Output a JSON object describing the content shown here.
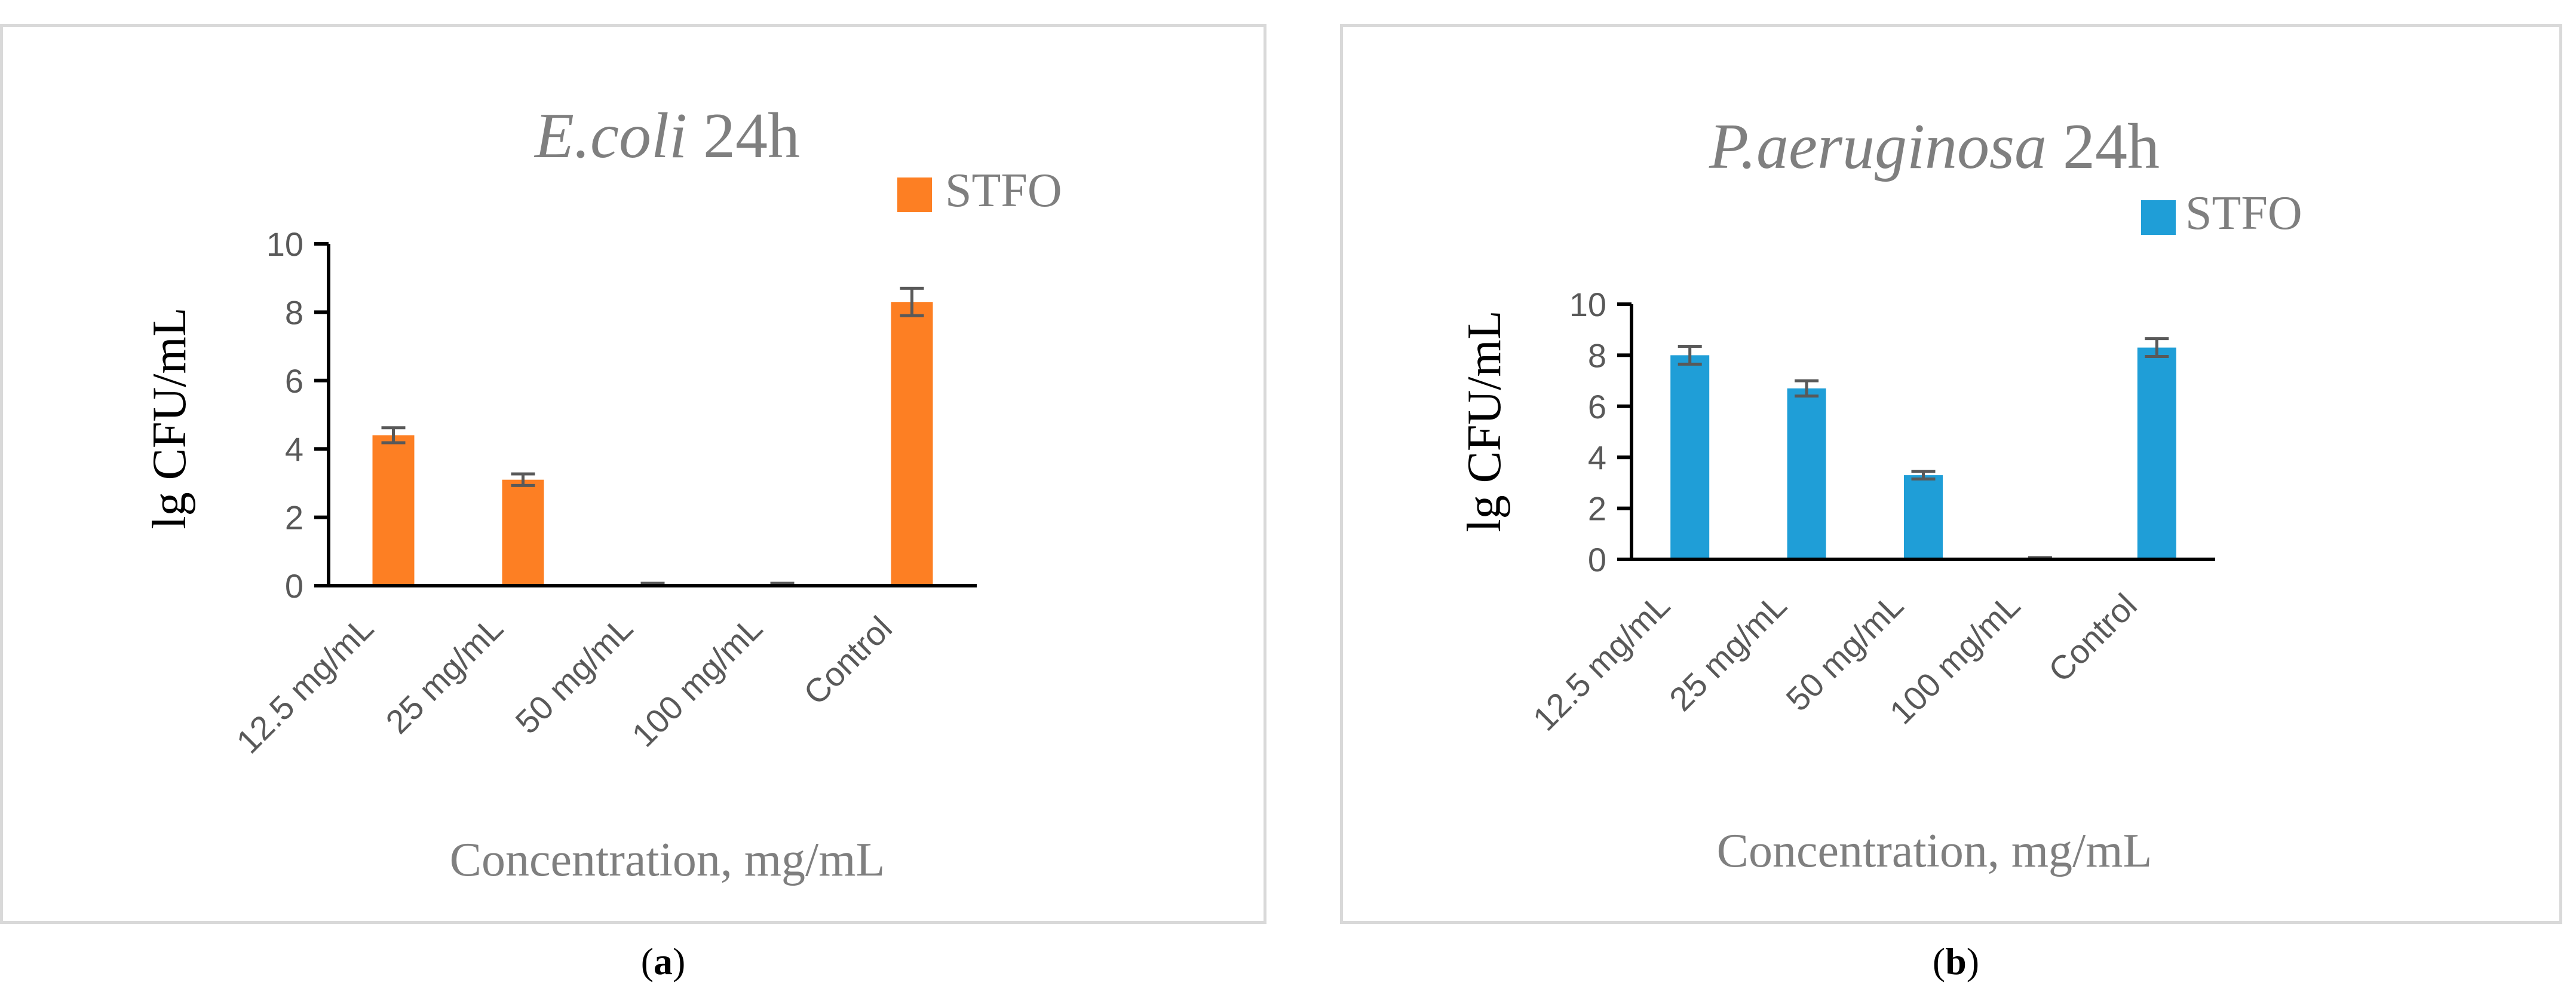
{
  "panels": [
    {
      "label_open": "(",
      "label": "a",
      "label_close": ")",
      "color": "#fd7f23",
      "error_color": "#595959",
      "chart_data": {
        "type": "bar",
        "title_italic": "E.coli",
        "title_rest": " 24h",
        "legend": "STFO",
        "xlabel": "Concentration, mg/mL",
        "ylabel": "lg CFU/mL",
        "categories": [
          "12.5 mg/mL",
          "25 mg/mL",
          "50 mg/mL",
          "100 mg/mL",
          "Control"
        ],
        "values": [
          4.4,
          3.1,
          0.05,
          0.05,
          8.3
        ],
        "errors": [
          0.22,
          0.17,
          0.02,
          0.02,
          0.4
        ],
        "ylim": [
          0,
          10
        ],
        "yticks": [
          0,
          2,
          4,
          6,
          8,
          10
        ],
        "grid": false
      }
    },
    {
      "label_open": "(",
      "label": "b",
      "label_close": ")",
      "color": "#1f9ed7",
      "error_color": "#595959",
      "chart_data": {
        "type": "bar",
        "title_italic": "P.aeruginosa",
        "title_rest": " 24h",
        "legend": "STFO",
        "xlabel": "Concentration, mg/mL",
        "ylabel": "lg CFU/mL",
        "categories": [
          "12.5 mg/mL",
          "25 mg/mL",
          "50 mg/mL",
          "100 mg/mL",
          "Control"
        ],
        "values": [
          8.0,
          6.7,
          3.3,
          0.05,
          8.3
        ],
        "errors": [
          0.35,
          0.3,
          0.15,
          0.02,
          0.35
        ],
        "ylim": [
          0,
          10
        ],
        "yticks": [
          0,
          2,
          4,
          6,
          8,
          10
        ],
        "grid": false
      }
    }
  ]
}
